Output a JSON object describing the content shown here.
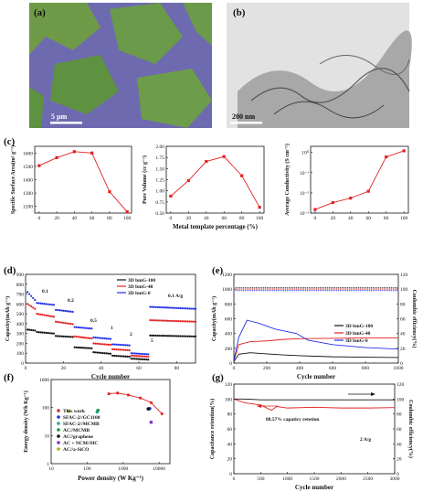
{
  "colors": {
    "blue": "#2330e6",
    "red": "#e32222",
    "black": "#111111",
    "green": "#1a9e3b",
    "teal": "#27a6a8",
    "purple": "#8a2ed0",
    "olive": "#b5ae1c",
    "sem_green": "#5e9a3e",
    "sem_purple": "#7c6fc4"
  },
  "panels": {
    "a": {
      "label": "(a)",
      "scalebar": "5 µm"
    },
    "b": {
      "label": "(b)",
      "scalebar": "200 nm"
    },
    "c": {
      "label": "(c)"
    },
    "d": {
      "label": "(d)"
    },
    "e": {
      "label": "(e)"
    },
    "f": {
      "label": "(f)"
    },
    "g": {
      "label": "(g)"
    }
  },
  "chart_data": [
    {
      "id": "c1",
      "type": "line",
      "xlabel": "",
      "ylabel": "Specific Surface Area(m² g⁻¹)",
      "x": [
        0,
        20,
        40,
        60,
        80,
        100
      ],
      "series": [
        {
          "values": [
            1505,
            1565,
            1610,
            1600,
            1310,
            1160
          ],
          "color": "#e32222"
        }
      ],
      "xlim": [
        -5,
        105
      ],
      "ylim": [
        1150,
        1650
      ],
      "xticks": [
        "0",
        "20",
        "40",
        "60",
        "80",
        "100"
      ],
      "yticks": [
        "1200",
        "1300",
        "1400",
        "1500",
        "1600"
      ]
    },
    {
      "id": "c2",
      "type": "line",
      "xlabel": "Metal template percentage (%)",
      "ylabel": "Pore Volume (cc g⁻¹)",
      "x": [
        0,
        20,
        40,
        60,
        80,
        100
      ],
      "series": [
        {
          "values": [
            0.88,
            1.23,
            1.66,
            1.77,
            1.34,
            0.63
          ],
          "color": "#e32222"
        }
      ],
      "xlim": [
        -5,
        105
      ],
      "ylim": [
        0.5,
        2.0
      ],
      "xticks": [
        "0",
        "20",
        "40",
        "60",
        "80",
        "100"
      ],
      "yticks": [
        "0.50",
        "0.75",
        "1.00",
        "1.25",
        "1.50",
        "1.75",
        "2.00"
      ]
    },
    {
      "id": "c3",
      "type": "line",
      "xlabel": "",
      "ylabel": "Average Conductivity (S cm⁻¹)",
      "log_y": true,
      "x": [
        0,
        20,
        40,
        60,
        80,
        100
      ],
      "series": [
        {
          "values": [
            0.0015,
            0.0033,
            0.0055,
            0.012,
            0.6,
            1.2
          ],
          "color": "#e32222"
        }
      ],
      "xlim": [
        -5,
        105
      ],
      "ylim": [
        0.001,
        2
      ],
      "xticks": [
        "0",
        "20",
        "40",
        "60",
        "80",
        "100"
      ],
      "yticks": [
        "10⁻³",
        "10⁻²",
        "10⁻¹",
        "10⁰"
      ]
    },
    {
      "id": "d",
      "type": "scatter",
      "xlabel": "Cycle number",
      "ylabel": "Capacity(mAh g⁻¹)",
      "xlim": [
        0,
        90
      ],
      "ylim": [
        0,
        900
      ],
      "xticks": [
        "0",
        "20",
        "40",
        "60",
        "80"
      ],
      "yticks": [
        "0",
        "100",
        "200",
        "300",
        "400",
        "500",
        "600",
        "700",
        "800",
        "900"
      ],
      "rate_annotations": [
        "0.1",
        "0.2",
        "0.5",
        "1",
        "2",
        "5",
        "0.1 A/g"
      ],
      "series": [
        {
          "name": "3D bmG-100",
          "color": "#111111",
          "steps": [
            [
              1,
              5,
              330,
              340
            ],
            [
              6,
              15,
              300,
              315
            ],
            [
              16,
              25,
              265,
              275
            ],
            [
              26,
              35,
              150,
              160
            ],
            [
              36,
              45,
              95,
              110
            ],
            [
              46,
              55,
              65,
              75
            ],
            [
              56,
              65,
              35,
              45
            ],
            [
              66,
              90,
              270,
              280
            ]
          ]
        },
        {
          "name": "3D bmG-40",
          "color": "#e32222",
          "steps": [
            [
              1,
              5,
              550,
              600
            ],
            [
              6,
              15,
              470,
              500
            ],
            [
              16,
              25,
              395,
              420
            ],
            [
              26,
              35,
              250,
              270
            ],
            [
              36,
              45,
              185,
              200
            ],
            [
              46,
              55,
              130,
              140
            ],
            [
              56,
              65,
              65,
              75
            ],
            [
              66,
              90,
              420,
              435
            ]
          ]
        },
        {
          "name": "3D bmG-0",
          "color": "#2330e6",
          "steps": [
            [
              1,
              5,
              640,
              720
            ],
            [
              6,
              15,
              590,
              610
            ],
            [
              16,
              25,
              520,
              540
            ],
            [
              26,
              35,
              350,
              365
            ],
            [
              36,
              45,
              245,
              260
            ],
            [
              46,
              55,
              180,
              190
            ],
            [
              56,
              65,
              90,
              100
            ],
            [
              66,
              90,
              550,
              570
            ]
          ]
        }
      ]
    },
    {
      "id": "e",
      "type": "line",
      "xlabel": "Cycle number",
      "ylabel": "Capacity(mAh g⁻¹)",
      "y2label": "Coulombic efficiency(%)",
      "xlim": [
        0,
        1000
      ],
      "ylim": [
        0,
        1200
      ],
      "y2lim": [
        0,
        120
      ],
      "xticks": [
        "0",
        "200",
        "400",
        "600",
        "800",
        "1000"
      ],
      "yticks": [
        "0",
        "200",
        "400",
        "600",
        "800",
        "1000",
        "1200"
      ],
      "y2ticks": [
        "0",
        "20",
        "40",
        "60",
        "80",
        "100",
        "120"
      ],
      "series": [
        {
          "name": "3D bmG-100",
          "color": "#111111",
          "x": [
            0,
            30,
            100,
            200,
            300,
            400,
            600,
            800,
            1000
          ],
          "values": [
            20,
            120,
            140,
            125,
            110,
            100,
            85,
            80,
            75
          ]
        },
        {
          "name": "3D bmG-40",
          "color": "#e32222",
          "x": [
            0,
            30,
            100,
            200,
            300,
            400,
            600,
            800,
            1000
          ],
          "values": [
            30,
            250,
            290,
            300,
            320,
            330,
            335,
            340,
            340
          ]
        },
        {
          "name": "3D bmG-0",
          "color": "#2330e6",
          "x": [
            0,
            30,
            80,
            150,
            250,
            380,
            450,
            600,
            800,
            1000
          ],
          "values": [
            40,
            350,
            580,
            540,
            460,
            400,
            310,
            250,
            210,
            190
          ]
        }
      ],
      "coulombic_efficiency_percent": 100
    },
    {
      "id": "f",
      "type": "scatter",
      "xlabel": "Power density (W Kg⁻¹)",
      "ylabel": "Energy density (Wh Kg⁻¹)",
      "log_x": true,
      "log_y": true,
      "xlim": [
        10,
        20000
      ],
      "ylim": [
        1,
        1000
      ],
      "xticks": [
        "10",
        "100",
        "1000",
        "10000"
      ],
      "yticks": [
        "1",
        "10",
        "100",
        "1000"
      ],
      "series": [
        {
          "name": "This work",
          "color": "#e32222",
          "x": [
            400,
            700,
            1400,
            3000,
            6000,
            12000
          ],
          "values": [
            310,
            330,
            280,
            220,
            150,
            60
          ]
        },
        {
          "name": "SFAC-2//GC1100",
          "color": "#2330e6",
          "x": [
            5500
          ],
          "values": [
            92
          ]
        },
        {
          "name": "SFAC-2//MCMB",
          "color": "#27a6a8",
          "x": [
            190
          ],
          "values": [
            70
          ]
        },
        {
          "name": "AC//MCMB",
          "color": "#1a9e3b",
          "x": [
            200
          ],
          "values": [
            80
          ]
        },
        {
          "name": "AC//graphene",
          "color": "#111111",
          "x": [
            5000
          ],
          "values": [
            90
          ]
        },
        {
          "name": "AC + NCM//HC",
          "color": "#8a2ed0",
          "x": [
            6000
          ],
          "values": [
            30
          ]
        },
        {
          "name": "AC//a-SiCO",
          "color": "#b5ae1c",
          "x": [
            30
          ],
          "values": [
            75
          ]
        }
      ]
    },
    {
      "id": "g",
      "type": "line",
      "xlabel": "Cycle number",
      "ylabel": "Capacitance retention(%)",
      "y2label": "Coulombic efficiency(%)",
      "xlim": [
        0,
        3000
      ],
      "ylim": [
        0,
        120
      ],
      "y2lim": [
        0,
        120
      ],
      "xticks": [
        "0",
        "500",
        "1000",
        "1500",
        "2000",
        "2500",
        "3000"
      ],
      "yticks": [
        "0",
        "20",
        "40",
        "60",
        "80",
        "100",
        "120"
      ],
      "y2ticks": [
        "0",
        "20",
        "40",
        "60",
        "80",
        "100",
        "120"
      ],
      "annotations": [
        "88.57% capaticy retetion",
        "2 A/g"
      ],
      "series": [
        {
          "name": "retention",
          "color": "#e32222",
          "x": [
            0,
            200,
            500,
            700,
            800,
            1000,
            1500,
            2000,
            2500,
            3000
          ],
          "values": [
            100,
            95,
            92,
            85,
            90,
            88,
            89,
            88,
            88,
            88.6
          ]
        },
        {
          "name": "coulombic",
          "color": "#111111",
          "x": [
            0,
            200,
            500,
            1000,
            1500,
            2000,
            2500,
            3000
          ],
          "values": [
            100,
            100,
            99,
            99,
            99,
            99,
            99,
            99
          ]
        }
      ]
    }
  ]
}
